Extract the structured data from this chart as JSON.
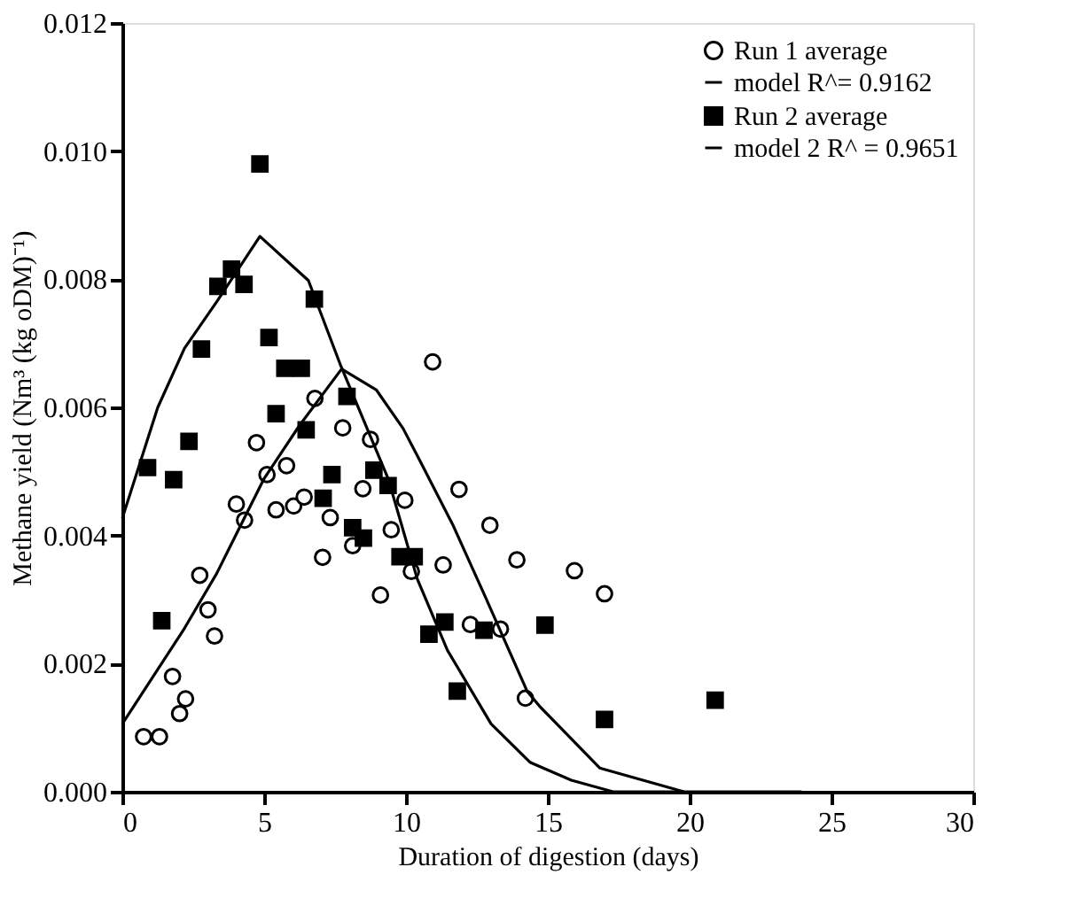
{
  "chart_data": {
    "type": "scatter",
    "xlabel": "Duration of digestion (days)",
    "ylabel": "Methane yield (Nm³ (kg oDM)⁻¹)",
    "xlim": [
      0,
      30
    ],
    "xticks": [
      0,
      5,
      10,
      15,
      20,
      25,
      30
    ],
    "ylim": [
      0,
      0.012
    ],
    "yticks": [
      {
        "value": 0,
        "label": "0.000"
      },
      {
        "value": 0.002,
        "label": "0.002"
      },
      {
        "value": 0.004,
        "label": "0.004"
      },
      {
        "value": 0.006,
        "label": "0.006"
      },
      {
        "value": 0.008,
        "label": "0.008"
      },
      {
        "value": 0.01,
        "label": "0.010"
      },
      {
        "value": 0.012,
        "label": "0.012"
      }
    ],
    "legend": "top right",
    "grid": false,
    "series": [
      {
        "name": "Run 1 average",
        "marker": "circle",
        "color": "#000000",
        "x": [
          0.75,
          1.31,
          1.77,
          2.02,
          2.23,
          2.73,
          3.02,
          3.25,
          4.02,
          4.31,
          4.73,
          5.1,
          5.42,
          5.79,
          6.04,
          6.41,
          6.79,
          7.06,
          7.33,
          7.77,
          8.12,
          8.48,
          8.75,
          9.1,
          9.48,
          9.96,
          10.19,
          10.94,
          11.31,
          11.87,
          12.27,
          12.96,
          13.33,
          13.91,
          14.21,
          15.94,
          17.0
        ],
        "values": [
          0.00086,
          0.00086,
          0.0018,
          0.00122,
          0.00145,
          0.00338,
          0.00284,
          0.00243,
          0.00449,
          0.00424,
          0.00545,
          0.00495,
          0.0044,
          0.00509,
          0.00446,
          0.0046,
          0.00614,
          0.00366,
          0.00428,
          0.00568,
          0.00384,
          0.00473,
          0.0055,
          0.00307,
          0.00409,
          0.00455,
          0.00344,
          0.00671,
          0.00354,
          0.00472,
          0.00261,
          0.00416,
          0.00254,
          0.00362,
          0.00146,
          0.00345,
          0.00309
        ]
      },
      {
        "name": "model R^= 0.9162",
        "type": "line",
        "color": "#000000",
        "x": [
          0,
          2.19,
          3.33,
          5.0,
          6.25,
          7.73,
          8.96,
          9.9,
          10.5,
          11.67,
          12.8,
          14.27,
          14.7,
          16.83,
          19.8,
          23.95
        ],
        "values": [
          0.00106,
          0.00255,
          0.00341,
          0.00489,
          0.00572,
          0.0066,
          0.00627,
          0.00567,
          0.00516,
          0.00415,
          0.00304,
          0.00157,
          0.00134,
          0.00037,
          0,
          0
        ]
      },
      {
        "name": "Run 2  average",
        "marker": "square",
        "color": "#000000",
        "x": [
          0.89,
          1.39,
          1.81,
          2.35,
          2.79,
          3.37,
          3.85,
          4.29,
          4.85,
          5.17,
          5.42,
          5.73,
          6.31,
          6.48,
          6.77,
          7.08,
          7.39,
          7.92,
          8.12,
          8.5,
          8.87,
          9.37,
          9.79,
          10.29,
          10.81,
          11.37,
          11.81,
          12.75,
          14.9,
          17.0,
          20.9
        ],
        "values": [
          0.00506,
          0.00267,
          0.00487,
          0.00547,
          0.00691,
          0.00789,
          0.00816,
          0.00792,
          0.0098,
          0.00709,
          0.0059,
          0.00661,
          0.00661,
          0.00565,
          0.00769,
          0.00458,
          0.00495,
          0.00617,
          0.00412,
          0.00396,
          0.00502,
          0.00478,
          0.00367,
          0.00367,
          0.00246,
          0.00265,
          0.00157,
          0.00252,
          0.0026,
          0.00113,
          0.00143
        ]
      },
      {
        "name": "model 2 R^ = 0.9651",
        "type": "line",
        "color": "#000000",
        "x": [
          0,
          1.25,
          2.19,
          3.33,
          4.85,
          6.56,
          7.71,
          9.37,
          10.4,
          11.46,
          13.0,
          14.37,
          15.83,
          17.3,
          19.8
        ],
        "values": [
          0.00427,
          0.006,
          0.00692,
          0.00765,
          0.00867,
          0.00798,
          0.00664,
          0.00489,
          0.00332,
          0.00221,
          0.00106,
          0.00046,
          0.00018,
          0,
          0
        ]
      }
    ]
  }
}
